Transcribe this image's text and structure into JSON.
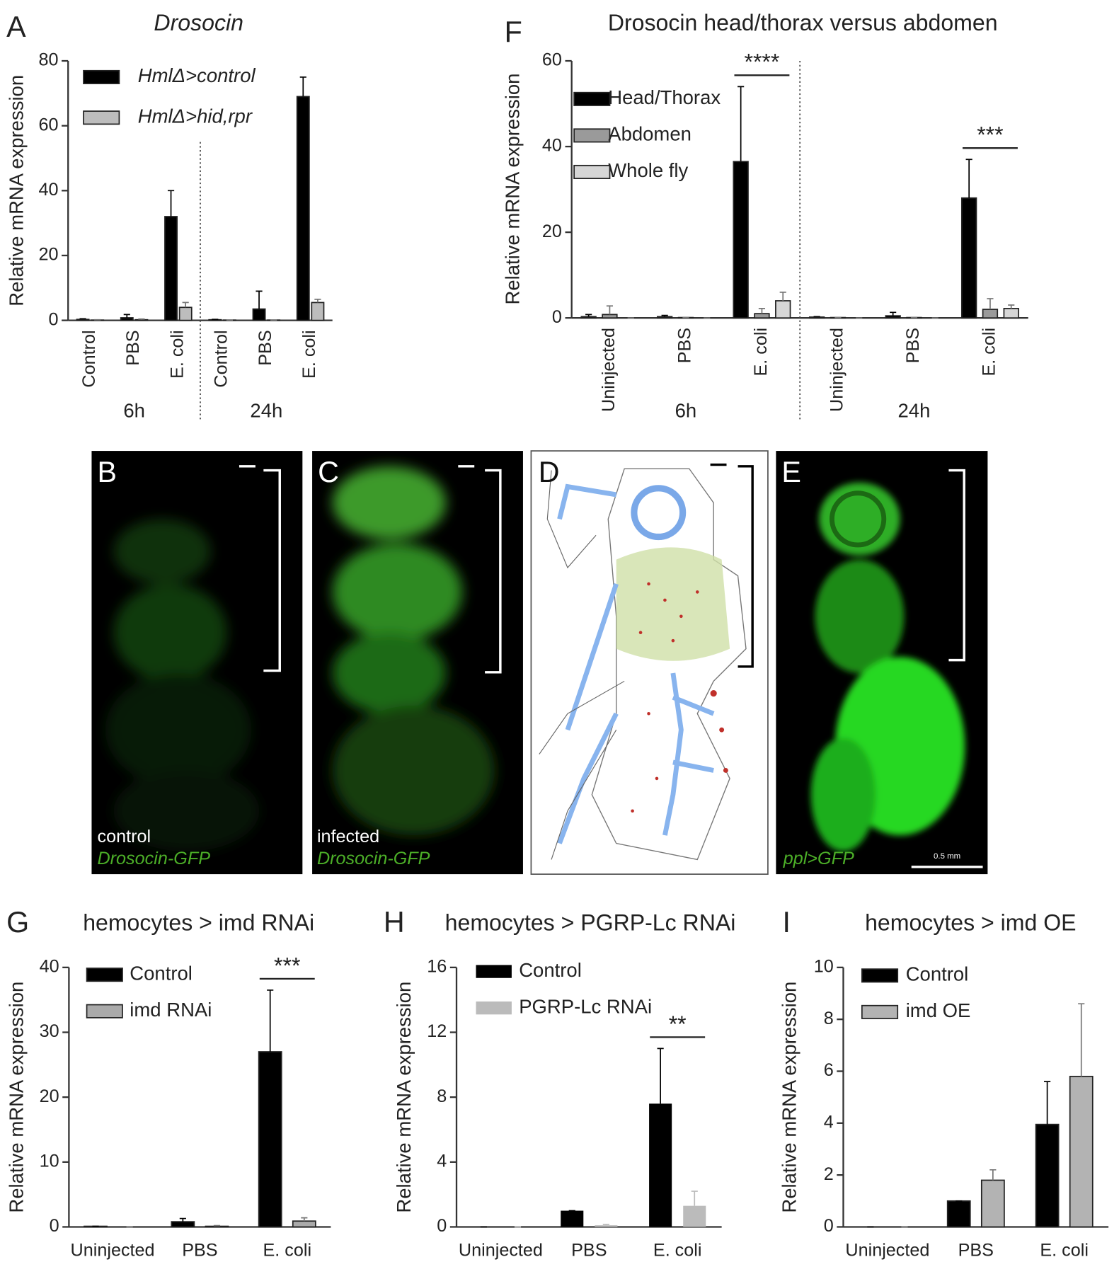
{
  "chart_data": [
    {
      "type": "bar",
      "panel": "A",
      "title": "Drosocin",
      "ylabel": "Relative mRNA expression",
      "categories": [
        "Control",
        "PBS",
        "E. coli",
        "Control",
        "PBS",
        "E. coli"
      ],
      "groups": [
        "6h",
        "24h"
      ],
      "ylim": [
        0,
        80
      ],
      "yticks": [
        0,
        20,
        40,
        60,
        80
      ],
      "series": [
        {
          "name": "HmlΔ>control",
          "color": "#000000",
          "values": [
            0.3,
            0.8,
            32,
            0.2,
            3.5,
            69
          ],
          "errors": [
            0.2,
            1,
            8,
            0.1,
            5.5,
            6
          ]
        },
        {
          "name": "HmlΔ>hid,rpr",
          "color": "#bdbdbd",
          "values": [
            0.1,
            0.2,
            4,
            0.1,
            0.1,
            5.5
          ],
          "errors": [
            0.1,
            0.2,
            1.5,
            0,
            0,
            1
          ]
        }
      ]
    },
    {
      "type": "bar",
      "panel": "F",
      "title": "Drosocin head/thorax versus abdomen",
      "ylabel": "Relative mRNA expression",
      "categories": [
        "Uninjected",
        "PBS",
        "E. coli",
        "Uninjected",
        "PBS",
        "E. coli"
      ],
      "groups": [
        "6h",
        "24h"
      ],
      "ylim": [
        0,
        60
      ],
      "yticks": [
        0,
        20,
        40,
        60
      ],
      "annotations": [
        "****",
        "***"
      ],
      "series": [
        {
          "name": "Head/Thorax",
          "color": "#000000",
          "values": [
            0.3,
            0.3,
            36.5,
            0.2,
            0.5,
            28
          ],
          "errors": [
            0.5,
            0.3,
            17.5,
            0.1,
            0.8,
            9
          ]
        },
        {
          "name": "Abdomen",
          "color": "#9a9a9a",
          "values": [
            0.8,
            0.1,
            1,
            0.1,
            0.1,
            2
          ],
          "errors": [
            2,
            0,
            1.2,
            0,
            0,
            2.5
          ]
        },
        {
          "name": "Whole fly",
          "color": "#d6d6d6",
          "values": [
            0,
            0,
            4,
            0,
            0,
            2.2
          ],
          "errors": [
            0,
            0,
            2,
            0,
            0,
            0.8
          ]
        }
      ]
    },
    {
      "type": "bar",
      "panel": "G",
      "title": "hemocytes > imd RNAi",
      "ylabel": "Relative mRNA expression",
      "categories": [
        "Uninjected",
        "PBS",
        "E. coli"
      ],
      "ylim": [
        0,
        40
      ],
      "yticks": [
        0,
        10,
        20,
        30,
        40
      ],
      "annotations": [
        "***"
      ],
      "series": [
        {
          "name": "Control",
          "color": "#000000",
          "values": [
            0.1,
            0.8,
            27
          ],
          "errors": [
            0,
            0.5,
            9.5
          ]
        },
        {
          "name": "imd RNAi",
          "color": "#aaaaaa",
          "values": [
            0,
            0.1,
            0.9
          ],
          "errors": [
            0,
            0.1,
            0.5
          ]
        }
      ]
    },
    {
      "type": "bar",
      "panel": "H",
      "title": "hemocytes > PGRP-Lc RNAi",
      "ylabel": "Relative mRNA expression",
      "categories": [
        "Uninjected",
        "PBS",
        "E. coli"
      ],
      "ylim": [
        0,
        16
      ],
      "yticks": [
        0,
        4,
        8,
        12,
        16
      ],
      "annotations": [
        "**"
      ],
      "series": [
        {
          "name": "Control",
          "color": "#000000",
          "values": [
            0,
            1,
            7.6
          ],
          "errors": [
            0,
            0,
            3.4
          ]
        },
        {
          "name": "PGRP-Lc RNAi",
          "color": "#bbbbbb",
          "values": [
            0,
            0.1,
            1.3
          ],
          "errors": [
            0,
            0.05,
            0.9
          ]
        }
      ]
    },
    {
      "type": "bar",
      "panel": "I",
      "title": "hemocytes > imd OE",
      "ylabel": "Relative mRNA expression",
      "categories": [
        "Uninjected",
        "PBS",
        "E. coli"
      ],
      "ylim": [
        0,
        10
      ],
      "yticks": [
        0,
        2,
        4,
        6,
        8,
        10
      ],
      "series": [
        {
          "name": "Control",
          "color": "#000000",
          "values": [
            0,
            1,
            3.95
          ],
          "errors": [
            0,
            0,
            1.65
          ]
        },
        {
          "name": "imd OE",
          "color": "#b3b3b3",
          "values": [
            0,
            1.8,
            5.8
          ],
          "errors": [
            0,
            0.4,
            2.8
          ]
        }
      ]
    }
  ],
  "images": [
    {
      "label": "B",
      "caption": "control",
      "reporter": "Drosocin-GFP"
    },
    {
      "label": "C",
      "caption": "infected",
      "reporter": "Drosocin-GFP"
    },
    {
      "label": "D"
    },
    {
      "label": "E",
      "reporter": "ppl>GFP",
      "scale_bar": "0.5 mm"
    }
  ]
}
